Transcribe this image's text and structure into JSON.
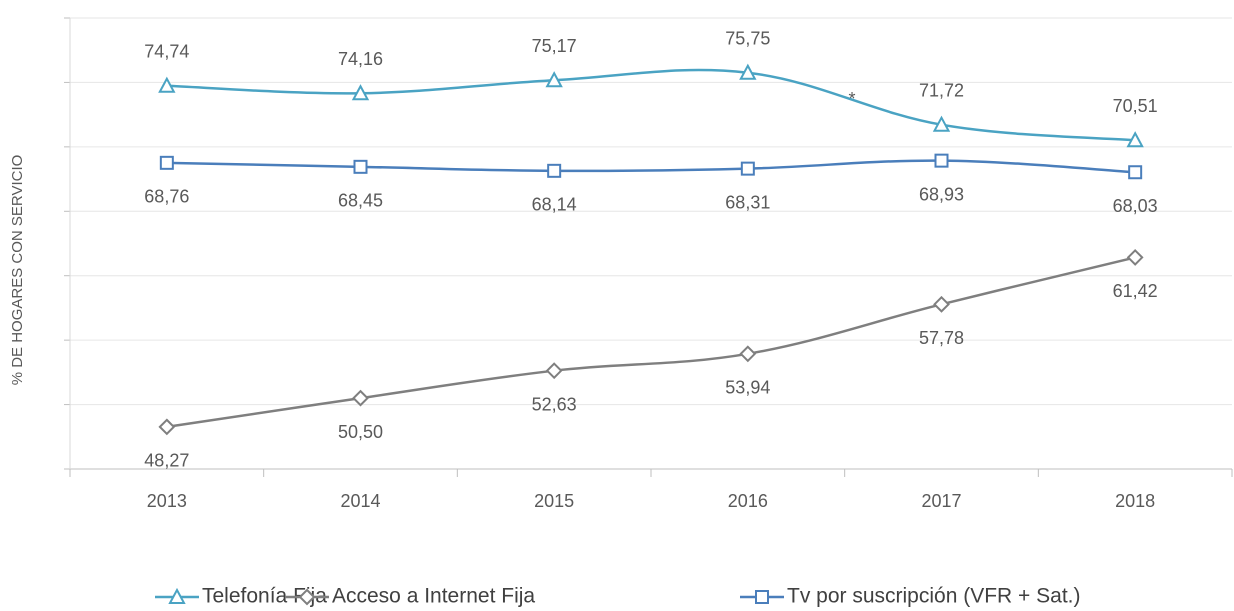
{
  "chart_data": {
    "type": "line",
    "y_label": "% DE HOGARES CON SERVICIO",
    "categories": [
      "2013",
      "2014",
      "2015",
      "2016",
      "2017",
      "2018"
    ],
    "series": [
      {
        "name": "Telefonía Fija",
        "color": "#4aa3c3",
        "marker": "triangle",
        "values": [
          74.74,
          74.16,
          75.17,
          75.75,
          71.72,
          70.51
        ],
        "value_labels": [
          "74,74",
          "74,16",
          "75,17",
          "75,75",
          "71,72",
          "70,51"
        ]
      },
      {
        "name": "Acceso a Internet Fija",
        "color": "#7f7f7f",
        "marker": "diamond",
        "values": [
          48.27,
          50.5,
          52.63,
          53.94,
          57.78,
          61.42
        ],
        "value_labels": [
          "48,27",
          "50,50",
          "52,63",
          "53,94",
          "57,78",
          "61,42"
        ]
      },
      {
        "name": "Tv por suscripción (VFR + Sat.)",
        "color": "#4a7ebb",
        "marker": "square",
        "values": [
          68.76,
          68.45,
          68.14,
          68.31,
          68.93,
          68.03
        ],
        "value_labels": [
          "68,76",
          "68,45",
          "68,14",
          "68,31",
          "68,93",
          "68,03"
        ]
      }
    ],
    "annotation": "*",
    "ylim": [
      45,
      80
    ],
    "yticks": [
      45,
      50,
      55,
      60,
      65,
      70,
      75,
      80
    ],
    "grid": true,
    "legend": "bottom"
  }
}
